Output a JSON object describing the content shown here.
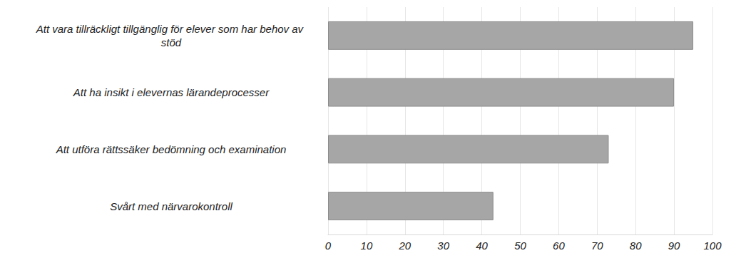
{
  "chart_data": {
    "type": "bar",
    "orientation": "horizontal",
    "categories": [
      "Att vara tillräckligt tillgänglig för elever som har behov av stöd",
      "Att ha insikt i elevernas lärandeprocesser",
      "Att utföra rättssäker bedömning och examination",
      "Svårt med närvarokontroll"
    ],
    "values": [
      95,
      90,
      73,
      43
    ],
    "color": "#a6a6a6",
    "xlim": [
      0,
      100
    ],
    "xticks": [
      0,
      10,
      20,
      30,
      40,
      50,
      60,
      70,
      80,
      90,
      100
    ],
    "grid": true
  }
}
